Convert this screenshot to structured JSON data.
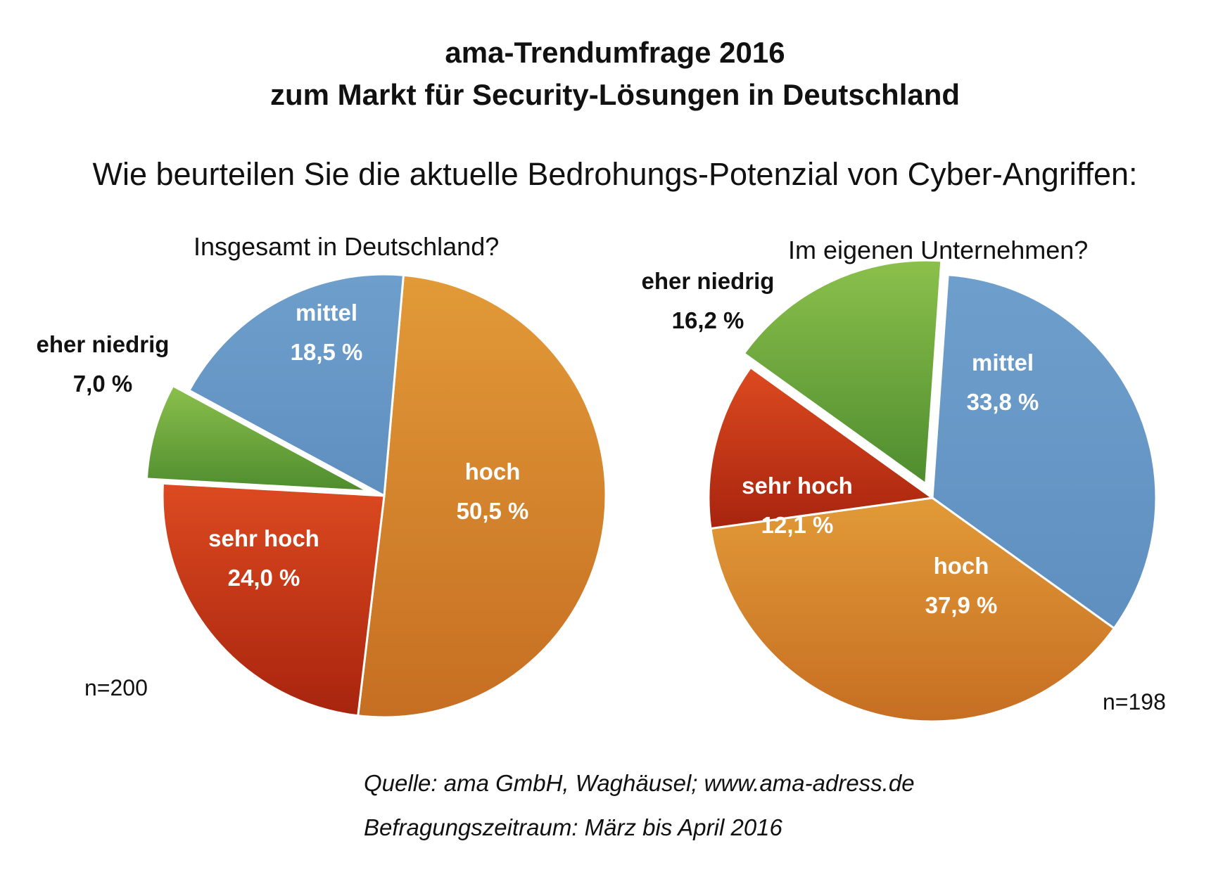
{
  "title_line1": "ama-Trendumfrage 2016",
  "title_line2": "zum Markt für Security-Lösungen in Deutschland",
  "question": "Wie beurteilen Sie die aktuelle Bedrohungs-Potenzial von Cyber-Angriffen:",
  "source": "Quelle: ama GmbH, Waghäusel; www.ama-adress.de",
  "period": "Befragungszeitraum: März bis April 2016",
  "chart_data": [
    {
      "type": "pie",
      "title": "Insgesamt in Deutschland?",
      "n_label": "n=200",
      "slices": [
        {
          "label": "hoch",
          "value": 50.5,
          "value_label": "50,5 %",
          "color": "#d4862a",
          "exploded": false
        },
        {
          "label": "sehr hoch",
          "value": 24.0,
          "value_label": "24,0 %",
          "color": "#c9381c",
          "exploded": false
        },
        {
          "label": "eher niedrig",
          "value": 7.0,
          "value_label": "7,0 %",
          "color": "#5e9e3a",
          "exploded": true
        },
        {
          "label": "mittel",
          "value": 18.5,
          "value_label": "18,5 %",
          "color": "#6b9bc8",
          "exploded": false
        }
      ]
    },
    {
      "type": "pie",
      "title": "Im eigenen Unternehmen?",
      "n_label": "n=198",
      "slices": [
        {
          "label": "mittel",
          "value": 33.8,
          "value_label": "33,8 %",
          "color": "#6b9bc8",
          "exploded": false
        },
        {
          "label": "hoch",
          "value": 37.9,
          "value_label": "37,9 %",
          "color": "#d4862a",
          "exploded": false
        },
        {
          "label": "sehr hoch",
          "value": 12.1,
          "value_label": "12,1 %",
          "color": "#c9381c",
          "exploded": false
        },
        {
          "label": "eher niedrig",
          "value": 16.2,
          "value_label": "16,2 %",
          "color": "#5e9e3a",
          "exploded": true
        }
      ]
    }
  ]
}
